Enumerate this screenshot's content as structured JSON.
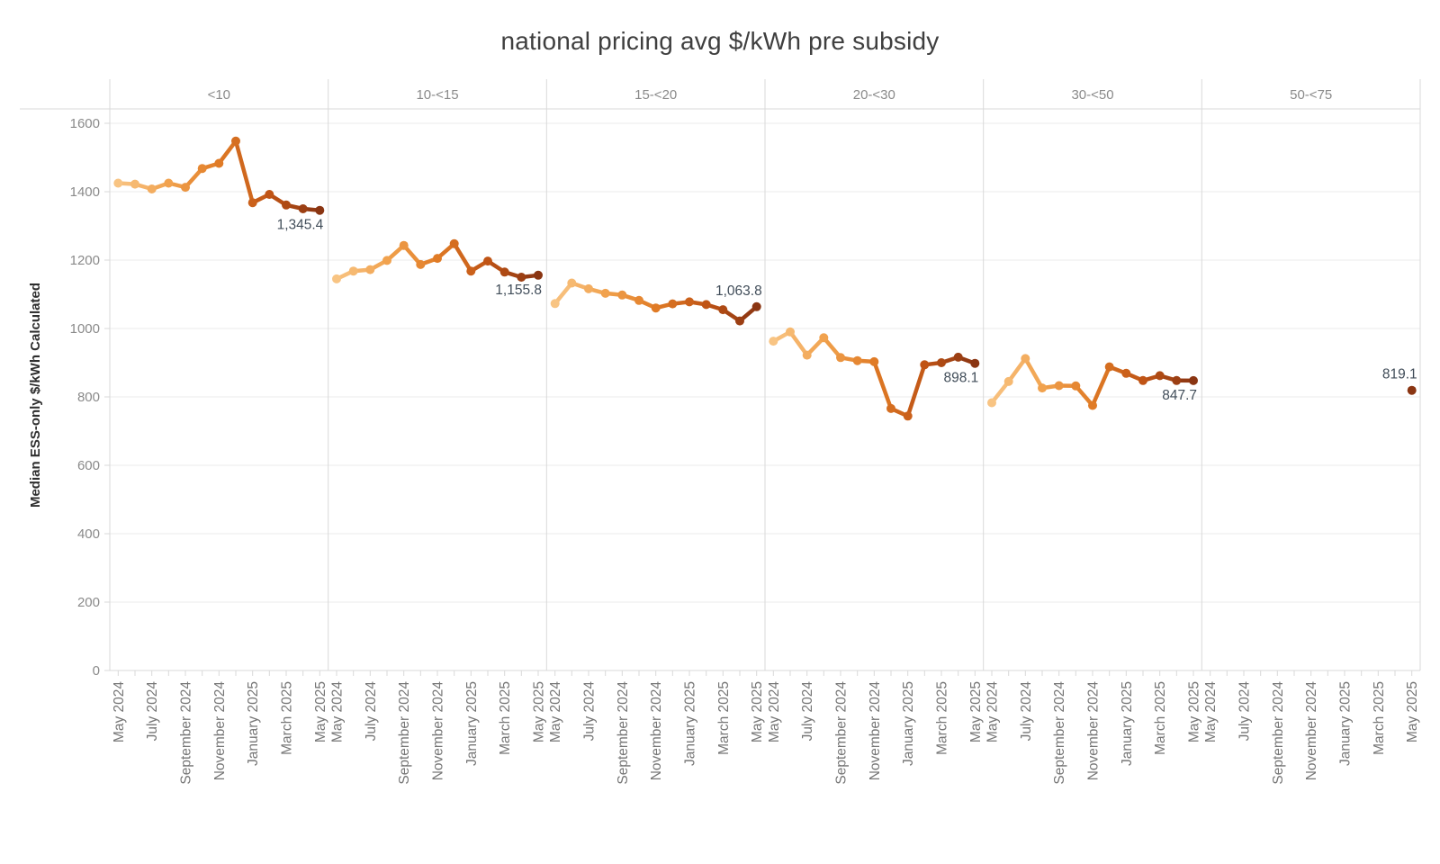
{
  "title": "national pricing avg $/kWh pre subsidy",
  "chart_data": {
    "type": "line",
    "title": "national pricing avg $/kWh pre subsidy",
    "ylabel": "Median ESS-only $/kWh Calculated",
    "ylim": [
      0,
      1600
    ],
    "yticks": [
      0,
      200,
      400,
      600,
      800,
      1000,
      1200,
      1400,
      1600
    ],
    "grid": "horizontal",
    "x": [
      "May 2024",
      "June 2024",
      "July 2024",
      "August 2024",
      "September 2024",
      "October 2024",
      "November 2024",
      "December 2024",
      "January 2025",
      "February 2025",
      "March 2025",
      "April 2025",
      "May 2025"
    ],
    "x_labeled_slots": [
      0,
      2,
      4,
      6,
      8,
      10,
      12
    ],
    "color_stops": [
      "#f8c483",
      "#f1a24e",
      "#e07b26",
      "#c05415",
      "#8a3512"
    ],
    "annotation_color": "#414d59",
    "panels": [
      {
        "header": "<10",
        "values": [
          1425,
          1422,
          1408,
          1425,
          1413,
          1468,
          1483,
          1548,
          1368,
          1392,
          1361,
          1350,
          1345.4
        ],
        "end_label": "1,345.4",
        "end_label_pos": "below"
      },
      {
        "header": "10-<15",
        "values": [
          1145,
          1168,
          1172,
          1199,
          1243,
          1187,
          1205,
          1248,
          1168,
          1197,
          1165,
          1150,
          1155.8
        ],
        "end_label": "1,155.8",
        "end_label_pos": "below"
      },
      {
        "header": "15-<20",
        "values": [
          1073,
          1133,
          1116,
          1103,
          1098,
          1082,
          1060,
          1072,
          1078,
          1070,
          1055,
          1022,
          1063.8
        ],
        "end_label": "1,063.8",
        "end_label_pos": "above"
      },
      {
        "header": "20-<30",
        "values": [
          963,
          990,
          922,
          973,
          915,
          906,
          903,
          766,
          744,
          894,
          900,
          916,
          898.1
        ],
        "end_label": "898.1",
        "end_label_pos": "below"
      },
      {
        "header": "30-<50",
        "values": [
          783,
          845,
          912,
          826,
          833,
          832,
          775,
          888,
          869,
          848,
          862,
          848,
          847.7
        ],
        "end_label": "847.7",
        "end_label_pos": "below"
      },
      {
        "header": "50-<75",
        "values": [
          null,
          null,
          null,
          null,
          null,
          null,
          null,
          null,
          null,
          null,
          null,
          null,
          819.1
        ],
        "end_label": "819.1",
        "end_label_pos": "above"
      }
    ]
  }
}
